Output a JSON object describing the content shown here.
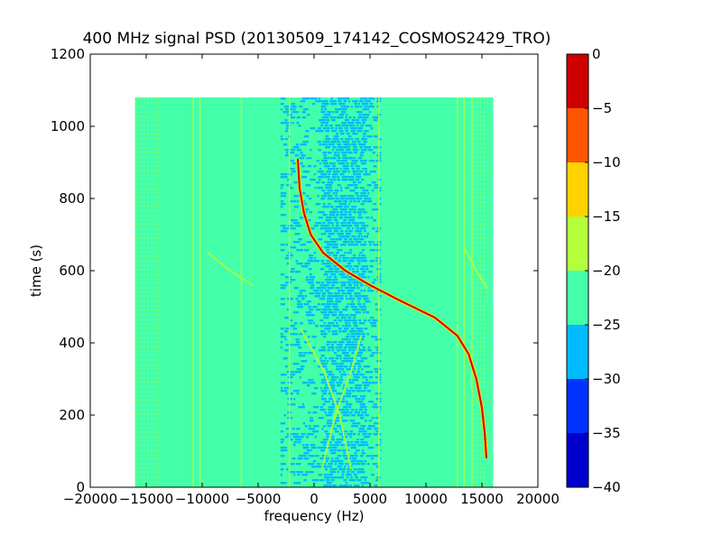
{
  "chart_data": {
    "type": "heatmap",
    "title": "400 MHz signal PSD (20130509_174142_COSMOS2429_TRO)",
    "xlabel": "frequency (Hz)",
    "ylabel": "time (s)",
    "xlim": [
      -20000,
      20000
    ],
    "ylim": [
      0,
      1200
    ],
    "xticks": [
      -20000,
      -15000,
      -10000,
      -5000,
      0,
      5000,
      10000,
      15000,
      20000
    ],
    "xtick_labels": [
      "−20000",
      "−15000",
      "−10000",
      "−5000",
      "0",
      "5000",
      "10000",
      "15000",
      "20000"
    ],
    "yticks": [
      0,
      200,
      400,
      600,
      800,
      1000,
      1200
    ],
    "ytick_labels": [
      "0",
      "200",
      "400",
      "600",
      "800",
      "1000",
      "1200"
    ],
    "data_extent": {
      "freq_range_hz": [
        -16000,
        16000
      ],
      "time_range_s": [
        0,
        1080
      ]
    },
    "background_level_db": -22.5,
    "grid": false,
    "colorbar": {
      "levels": [
        -40,
        -35,
        -30,
        -25,
        -20,
        -15,
        -10,
        -5,
        0
      ],
      "tick_labels": [
        "−40",
        "−35",
        "−30",
        "−25",
        "−20",
        "−15",
        "−10",
        "−5",
        "0"
      ],
      "colors": [
        "#0000cd",
        "#0033ff",
        "#00bbff",
        "#44ffaa",
        "#b3ff3c",
        "#ffd200",
        "#ff5500",
        "#cd0000"
      ]
    },
    "low_power_band": {
      "description_db": -27.5,
      "freq_range_hz": [
        -3000,
        6000
      ],
      "core_freq_range_hz": [
        500,
        4500
      ]
    },
    "signal_trace": {
      "level_db": -2.5,
      "points": [
        {
          "t": 80,
          "f": 15400
        },
        {
          "t": 150,
          "f": 15250
        },
        {
          "t": 220,
          "f": 15000
        },
        {
          "t": 300,
          "f": 14500
        },
        {
          "t": 370,
          "f": 13800
        },
        {
          "t": 420,
          "f": 12800
        },
        {
          "t": 470,
          "f": 10800
        },
        {
          "t": 520,
          "f": 7500
        },
        {
          "t": 560,
          "f": 5000
        },
        {
          "t": 600,
          "f": 2800
        },
        {
          "t": 650,
          "f": 800
        },
        {
          "t": 700,
          "f": -300
        },
        {
          "t": 760,
          "f": -900
        },
        {
          "t": 830,
          "f": -1300
        },
        {
          "t": 910,
          "f": -1450
        }
      ]
    },
    "faint_traces": {
      "level_db": -17.5,
      "vertical_lines_hz": [
        -10800,
        -10200,
        -6500,
        -2200,
        5800,
        12800,
        13400,
        14100
      ],
      "curves": [
        {
          "points": [
            {
              "t": 50,
              "f": 700
            },
            {
              "t": 200,
              "f": 1900
            },
            {
              "t": 320,
              "f": 3300
            },
            {
              "t": 420,
              "f": 4200
            }
          ]
        },
        {
          "points": [
            {
              "t": 50,
              "f": 3300
            },
            {
              "t": 200,
              "f": 2300
            },
            {
              "t": 320,
              "f": 900
            },
            {
              "t": 440,
              "f": -1200
            }
          ]
        },
        {
          "points": [
            {
              "t": 650,
              "f": -9500
            },
            {
              "t": 600,
              "f": -7500
            },
            {
              "t": 560,
              "f": -5500
            }
          ]
        },
        {
          "points": [
            {
              "t": 660,
              "f": 13500
            },
            {
              "t": 600,
              "f": 14500
            },
            {
              "t": 550,
              "f": 15500
            }
          ]
        }
      ]
    }
  }
}
